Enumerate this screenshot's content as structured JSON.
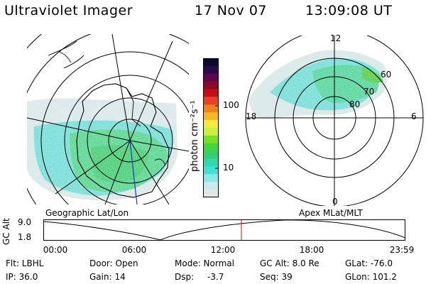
{
  "header": {
    "instrument": "Ultraviolet Imager",
    "date": "17 Nov 07",
    "time": "13:09:08 UT"
  },
  "colorbar": {
    "unit_label": "photon cm⁻²s⁻¹",
    "ticks": [
      "100",
      "10"
    ],
    "colors": [
      "#0b0a2e",
      "#2a0b4a",
      "#5a0a4a",
      "#8a0a2a",
      "#c01010",
      "#e8402a",
      "#f0801a",
      "#f5b820",
      "#f3ea40",
      "#c8f040",
      "#78e028",
      "#40d838",
      "#30d070",
      "#30d8b0",
      "#40e0d8",
      "#8ae8e8",
      "#c8ecec",
      "#e2e6e6"
    ]
  },
  "left_panel": {
    "caption": "Geographic Lat/Lon"
  },
  "right_panel": {
    "caption": "Apex MLat/MLT",
    "mlt_labels": {
      "top": "12",
      "left": "18",
      "right": "6",
      "bottom": "0"
    },
    "lat_labels": [
      "60",
      "70",
      "80"
    ]
  },
  "altitude_strip": {
    "label": "GC Alt",
    "top_value": "9.0",
    "bottom_value": "1.8",
    "time_ticks": [
      "00:00",
      "06:00",
      "12:00",
      "18:00",
      "23:59"
    ],
    "current_time_fraction": 0.547,
    "marker_color": "#d01010"
  },
  "status": {
    "filter": "Flt: LBHL",
    "ip": "IP: 36.0",
    "door": "Door: Open",
    "gain": "Gain: 14",
    "mode": "Mode: Normal",
    "dsp_label": "Dsp:",
    "dsp_value": "-3.7",
    "gc_alt": "GC Alt: 8.0 Re",
    "seq": "Seq: 39",
    "glat": "GLat: -76.0",
    "glon": "GLon: 101.2"
  }
}
